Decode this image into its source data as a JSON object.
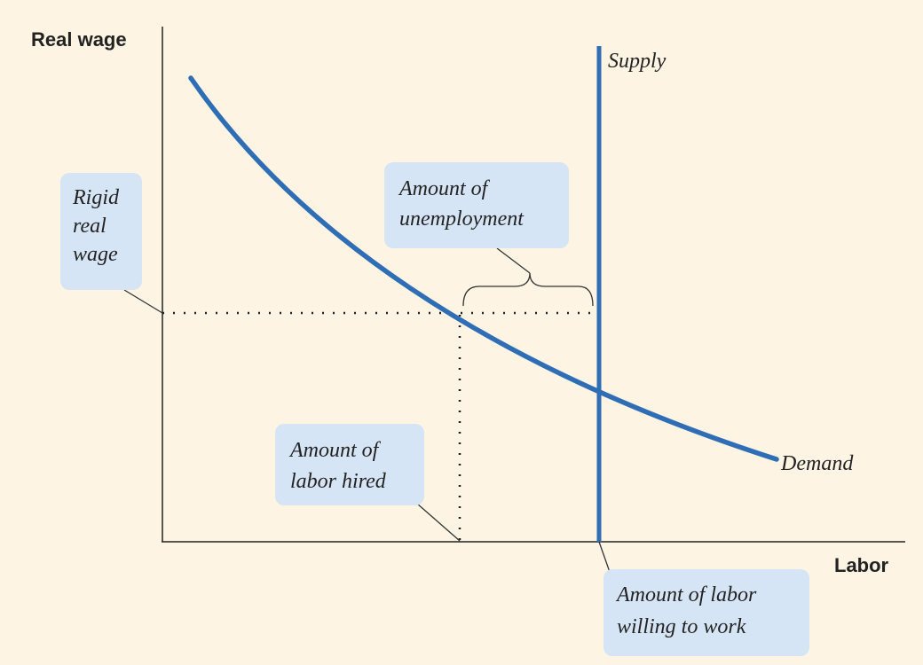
{
  "y_axis_label": "Real wage",
  "x_axis_label": "Labor",
  "supply_label": "Supply",
  "demand_label": "Demand",
  "callouts": [
    {
      "lines": [
        "Rigid",
        "real",
        "wage"
      ]
    },
    {
      "lines": [
        "Amount of",
        "unemployment"
      ]
    },
    {
      "lines": [
        "Amount of",
        "labor hired"
      ]
    },
    {
      "lines": [
        "Amount of labor",
        "willing to work"
      ]
    }
  ]
}
